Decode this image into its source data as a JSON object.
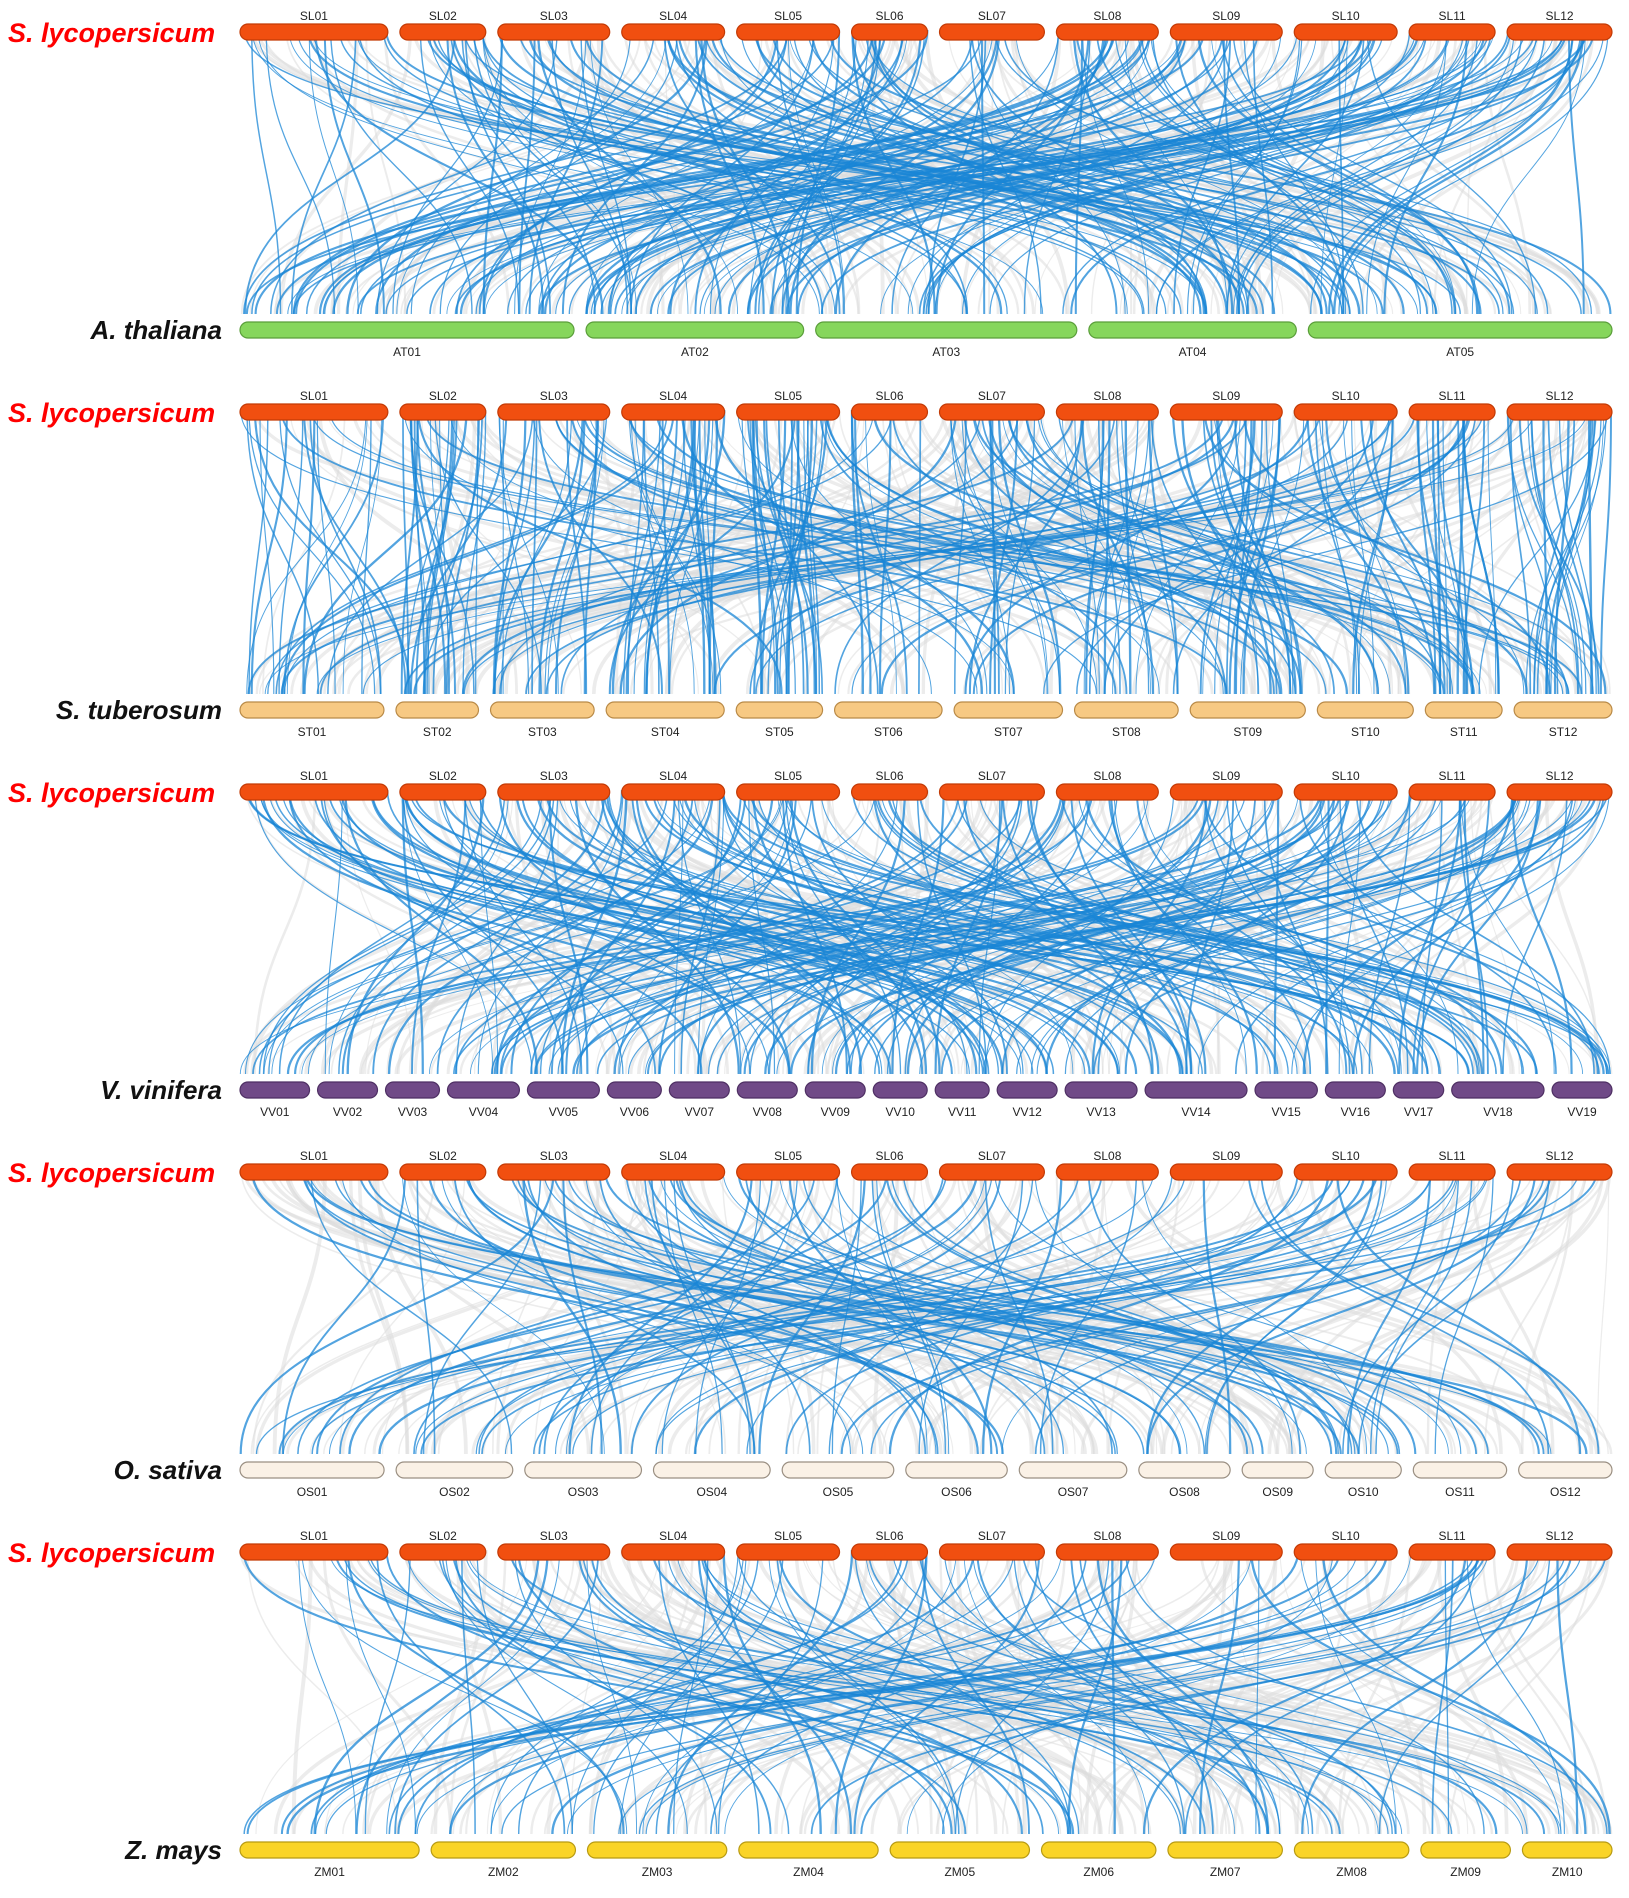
{
  "colors": {
    "reference": "#f14f10",
    "reference_stroke": "#c33a05",
    "reference_label": "#ff0000",
    "highlight_link": "#1a86d6",
    "background_link": "#dddddd"
  },
  "panels": [
    {
      "top_species": "S. lycopersicum",
      "bottom_species": "A. thaliana",
      "top_chromosomes": [
        "SL01",
        "SL02",
        "SL03",
        "SL04",
        "SL05",
        "SL06",
        "SL07",
        "SL08",
        "SL09",
        "SL10",
        "SL11",
        "SL12"
      ],
      "bottom_chromosomes": [
        "AT01",
        "AT02",
        "AT03",
        "AT04",
        "AT05"
      ],
      "bottom_color": "#86d65c",
      "bottom_stroke": "#5a9e3a"
    },
    {
      "top_species": "S. lycopersicum",
      "bottom_species": "S. tuberosum",
      "top_chromosomes": [
        "SL01",
        "SL02",
        "SL03",
        "SL04",
        "SL05",
        "SL06",
        "SL07",
        "SL08",
        "SL09",
        "SL10",
        "SL11",
        "SL12"
      ],
      "bottom_chromosomes": [
        "ST01",
        "ST02",
        "ST03",
        "ST04",
        "ST05",
        "ST06",
        "ST07",
        "ST08",
        "ST09",
        "ST10",
        "ST11",
        "ST12"
      ],
      "bottom_color": "#f7c983",
      "bottom_stroke": "#b98a47"
    },
    {
      "top_species": "S. lycopersicum",
      "bottom_species": "V. vinifera",
      "top_chromosomes": [
        "SL01",
        "SL02",
        "SL03",
        "SL04",
        "SL05",
        "SL06",
        "SL07",
        "SL08",
        "SL09",
        "SL10",
        "SL11",
        "SL12"
      ],
      "bottom_chromosomes": [
        "VV01",
        "VV02",
        "VV03",
        "VV04",
        "VV05",
        "VV06",
        "VV07",
        "VV08",
        "VV09",
        "VV10",
        "VV11",
        "VV12",
        "VV13",
        "VV14",
        "VV15",
        "VV16",
        "VV17",
        "VV18",
        "VV19"
      ],
      "bottom_color": "#704a87",
      "bottom_stroke": "#4e2f63"
    },
    {
      "top_species": "S. lycopersicum",
      "bottom_species": "O. sativa",
      "top_chromosomes": [
        "SL01",
        "SL02",
        "SL03",
        "SL04",
        "SL05",
        "SL06",
        "SL07",
        "SL08",
        "SL09",
        "SL10",
        "SL11",
        "SL12"
      ],
      "bottom_chromosomes": [
        "OS01",
        "OS02",
        "OS03",
        "OS04",
        "OS05",
        "OS06",
        "OS07",
        "OS08",
        "OS09",
        "OS10",
        "OS11",
        "OS12"
      ],
      "bottom_color": "#faf1e6",
      "bottom_stroke": "#9a8f82"
    },
    {
      "top_species": "S. lycopersicum",
      "bottom_species": "Z. mays",
      "top_chromosomes": [
        "SL01",
        "SL02",
        "SL03",
        "SL04",
        "SL05",
        "SL06",
        "SL07",
        "SL08",
        "SL09",
        "SL10",
        "SL11",
        "SL12"
      ],
      "bottom_chromosomes": [
        "ZM01",
        "ZM02",
        "ZM03",
        "ZM04",
        "ZM05",
        "ZM06",
        "ZM07",
        "ZM08",
        "ZM09",
        "ZM10"
      ],
      "bottom_color": "#fad427",
      "bottom_stroke": "#b89b13"
    }
  ]
}
